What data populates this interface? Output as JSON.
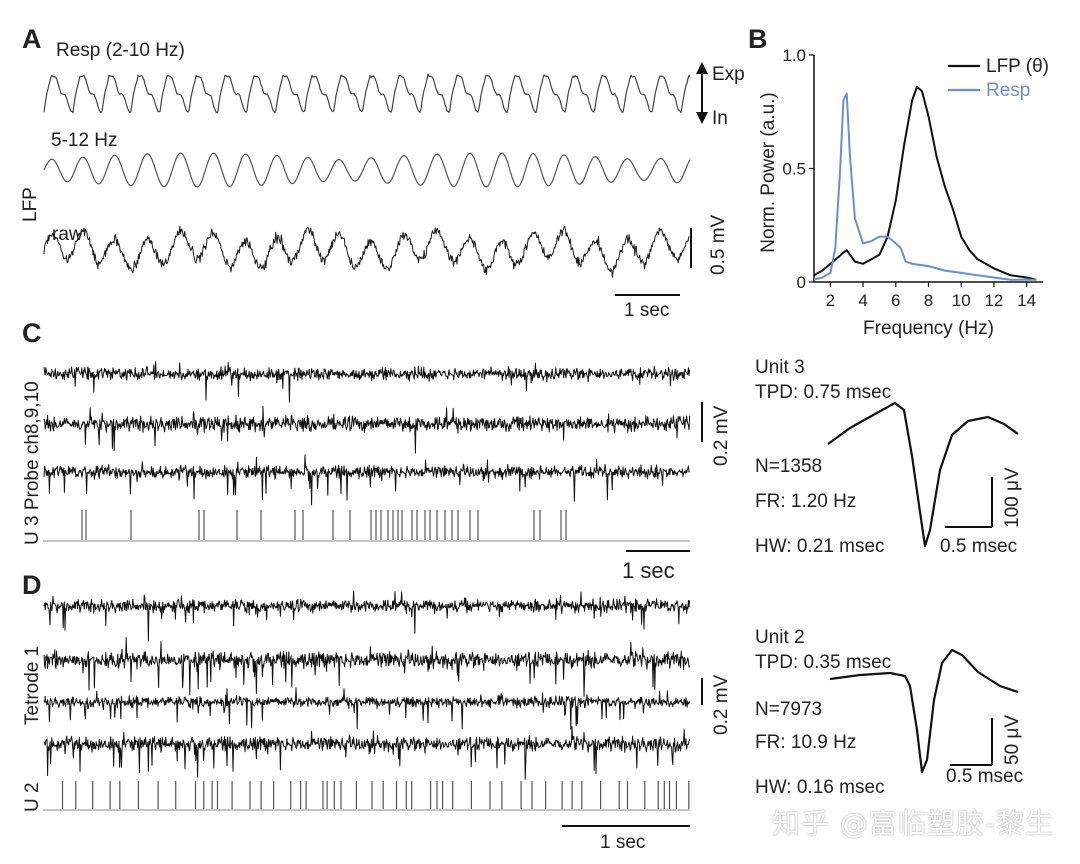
{
  "panels": {
    "a": {
      "letter": "A",
      "resp_label": "Resp (2-10 Hz)",
      "exp_label": "Exp",
      "in_label": "In",
      "lfp_label": "LFP",
      "filtered_label": "5-12 Hz",
      "raw_label": "raw",
      "scale_v": "0.5 mV",
      "scale_t": "1 sec"
    },
    "b": {
      "letter": "B"
    },
    "c": {
      "letter": "C",
      "side_label": "U 3  Probe ch8,9,10",
      "scale_v": "0.2 mV",
      "scale_t": "1 sec",
      "unit_title": "Unit 3",
      "tpd": "TPD: 0.75 msec",
      "n": "N=1358",
      "fr": "FR: 1.20 Hz",
      "hw": "HW: 0.21 msec",
      "wf_scale_v": "100 μV",
      "wf_scale_t": "0.5 msec"
    },
    "d": {
      "letter": "D",
      "tetrode_label": "Tetrode 1",
      "unit_row_label": "U 2",
      "scale_v": "0.2 mV",
      "scale_t": "1 sec",
      "unit_title": "Unit 2",
      "tpd": "TPD: 0.35 msec",
      "n": "N=7973",
      "fr": "FR: 10.9 Hz",
      "hw": "HW: 0.16 msec",
      "wf_scale_v": "50 μV",
      "wf_scale_t": "0.5 msec"
    }
  },
  "colors": {
    "lfp": "#111111",
    "resp": "#6a8fd0",
    "raster": "#555555"
  },
  "chart_data": {
    "type": "line",
    "xlabel": "Frequency (Hz)",
    "ylabel": "Norm. Power (a.u.)",
    "xlim": [
      1,
      15
    ],
    "ylim": [
      0,
      1.0
    ],
    "xticks": [
      "2",
      "4",
      "6",
      "8",
      "10",
      "12",
      "14"
    ],
    "yticks": [
      "0",
      "0.5",
      "1.0"
    ],
    "legend_position": "top-right",
    "series": [
      {
        "name": "LFP (θ)",
        "x": [
          1.0,
          1.5,
          2.0,
          2.5,
          2.8,
          3.0,
          3.2,
          3.5,
          4.0,
          4.5,
          5.0,
          5.5,
          6.0,
          6.5,
          7.0,
          7.3,
          7.6,
          8.0,
          8.5,
          9.0,
          9.5,
          10.0,
          10.5,
          11.0,
          11.5,
          12.0,
          13.0,
          14.0,
          14.6
        ],
        "y": [
          0.03,
          0.05,
          0.08,
          0.11,
          0.13,
          0.14,
          0.12,
          0.09,
          0.08,
          0.1,
          0.12,
          0.2,
          0.36,
          0.6,
          0.8,
          0.86,
          0.84,
          0.73,
          0.55,
          0.42,
          0.32,
          0.2,
          0.14,
          0.1,
          0.08,
          0.06,
          0.03,
          0.02,
          0.01
        ]
      },
      {
        "name": "Resp",
        "x": [
          1.0,
          1.5,
          2.0,
          2.3,
          2.6,
          2.8,
          3.0,
          3.2,
          3.5,
          4.0,
          4.5,
          5.0,
          5.5,
          6.0,
          6.3,
          6.6,
          7.0,
          8.0,
          9.0,
          10.0,
          11.0,
          12.0,
          13.0,
          14.6
        ],
        "y": [
          0.01,
          0.02,
          0.04,
          0.15,
          0.5,
          0.8,
          0.83,
          0.55,
          0.28,
          0.17,
          0.18,
          0.2,
          0.2,
          0.17,
          0.15,
          0.09,
          0.08,
          0.07,
          0.05,
          0.04,
          0.03,
          0.02,
          0.01,
          0.01
        ]
      }
    ]
  }
}
